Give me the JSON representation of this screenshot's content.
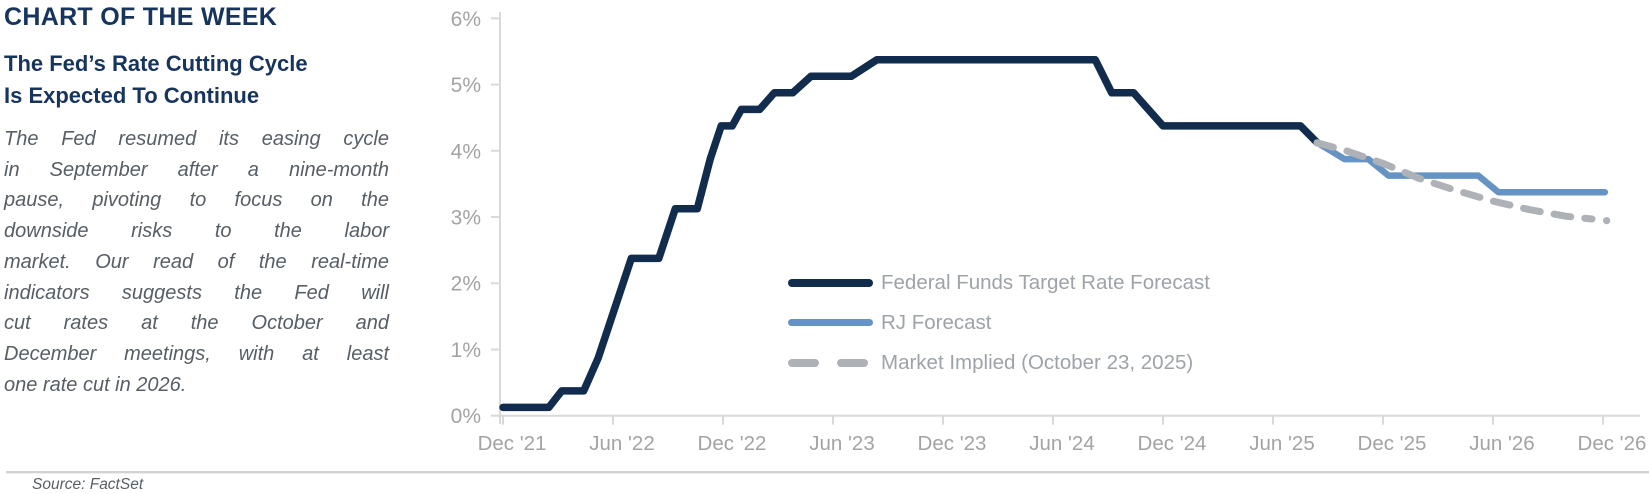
{
  "header": {
    "kicker": "CHART OF THE WEEK",
    "title_line1": "The Fed’s Rate Cutting Cycle",
    "title_line2": "Is Expected To Continue",
    "body_lines": [
      "The Fed resumed its easing cycle",
      "in September after a nine-month",
      "pause, pivoting to focus on the",
      "downside risks to the labor",
      "market. Our read of the real-time",
      "indicators suggests the Fed will",
      "cut rates at the October and",
      "December meetings, with at least",
      "one rate cut in 2026."
    ]
  },
  "footer": {
    "source": "Source: FactSet"
  },
  "colors": {
    "heading": "#17355c",
    "body_text": "#575e66",
    "axis_text": "#a3a3a3",
    "legend_text": "#9da3a9",
    "axis_line": "#d9d9d9",
    "source_text": "#585f66",
    "navy_line": "#112c4c",
    "blue_line": "#6493c4",
    "gray_line": "#aeb2b7"
  },
  "chart_data": {
    "type": "line",
    "title": "",
    "xlabel": "",
    "ylabel": "",
    "grid": false,
    "legend_position": "inside-center-bottom",
    "x_axis": {
      "start": "Dec '21",
      "end": "Dec '26",
      "months_per_tick": 6,
      "tick_labels": [
        "Dec '21",
        "Jun '22",
        "Dec '22",
        "Jun '23",
        "Dec '23",
        "Jun '24",
        "Dec '24",
        "Jun '25",
        "Dec '25",
        "Jun '26",
        "Dec '26"
      ]
    },
    "y_axis": {
      "min": 0,
      "max": 6,
      "unit": "%",
      "tick_labels": [
        "0%",
        "1%",
        "2%",
        "3%",
        "4%",
        "5%",
        "6%"
      ]
    },
    "series": [
      {
        "name": "Federal Funds Target Rate Forecast",
        "color": "#112c4c",
        "line_style": "solid",
        "stroke_width": 7.5,
        "points_month_pct": [
          [
            0,
            0.125
          ],
          [
            2.5,
            0.125
          ],
          [
            3.2,
            0.375
          ],
          [
            4.4,
            0.375
          ],
          [
            5.2,
            0.875
          ],
          [
            6.1,
            1.625
          ],
          [
            7.0,
            2.375
          ],
          [
            8.5,
            2.375
          ],
          [
            9.4,
            3.125
          ],
          [
            10.6,
            3.125
          ],
          [
            11.3,
            3.875
          ],
          [
            11.9,
            4.375
          ],
          [
            12.5,
            4.375
          ],
          [
            13.0,
            4.625
          ],
          [
            14.0,
            4.625
          ],
          [
            14.8,
            4.875
          ],
          [
            15.8,
            4.875
          ],
          [
            16.8,
            5.125
          ],
          [
            19.0,
            5.125
          ],
          [
            20.4,
            5.375
          ],
          [
            32.3,
            5.375
          ],
          [
            33.2,
            4.875
          ],
          [
            34.4,
            4.875
          ],
          [
            35.2,
            4.625
          ],
          [
            36.0,
            4.375
          ],
          [
            43.5,
            4.375
          ],
          [
            44.4,
            4.125
          ]
        ]
      },
      {
        "name": "RJ Forecast",
        "color": "#6493c4",
        "line_style": "solid",
        "stroke_width": 6.5,
        "points_month_pct": [
          [
            44.4,
            4.125
          ],
          [
            45.9,
            3.875
          ],
          [
            47.2,
            3.875
          ],
          [
            48.3,
            3.625
          ],
          [
            53.2,
            3.625
          ],
          [
            54.3,
            3.375
          ],
          [
            60.1,
            3.375
          ]
        ]
      },
      {
        "name": "Market Implied (October 23, 2025)",
        "color": "#aeb2b7",
        "line_style": "dashed",
        "stroke_width": 7,
        "end_dot": true,
        "points_month_pct": [
          [
            44.4,
            4.12
          ],
          [
            46,
            4.0
          ],
          [
            48,
            3.81
          ],
          [
            50,
            3.58
          ],
          [
            52,
            3.4
          ],
          [
            54,
            3.24
          ],
          [
            56,
            3.11
          ],
          [
            58,
            3.01
          ],
          [
            59.4,
            2.97
          ]
        ],
        "end_dot_month_pct": [
          60.2,
          2.945
        ]
      }
    ]
  }
}
